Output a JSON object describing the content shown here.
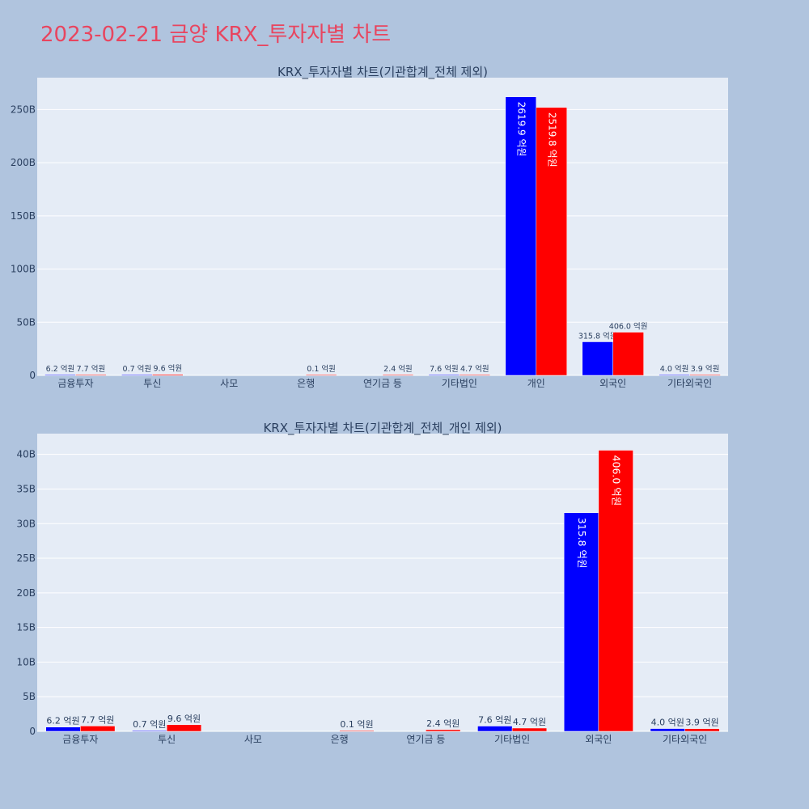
{
  "page": {
    "title": "2023-02-21 금양 KRX_투자자별 차트"
  },
  "colors": {
    "series_1": "#0000ff",
    "series_2": "#ff0000",
    "background": "#b0c4de",
    "plot_bg": "#e5ecf6",
    "text": "#2a3f5f",
    "title": "#e8455f"
  },
  "chart_data": [
    {
      "type": "bar",
      "title": "KRX_투자자별 차트(기관합계_전체 제외)",
      "categories": [
        "금융투자",
        "투신",
        "사모",
        "은행",
        "연기금 등",
        "기타법인",
        "개인",
        "외국인",
        "기타외국인"
      ],
      "series": [
        {
          "values": [
            0.62,
            0.07,
            0,
            0,
            0,
            0.76,
            261.99,
            31.58,
            0.4
          ],
          "labels": [
            "6.2 억원",
            "0.7 억원",
            "",
            "",
            "",
            "7.6 억원",
            "2619.9 억원",
            "315.8 억원",
            "4.0 억원"
          ]
        },
        {
          "values": [
            0.77,
            0.96,
            0,
            0.01,
            0.24,
            0.47,
            251.98,
            40.6,
            0.39
          ],
          "labels": [
            "7.7 억원",
            "9.6 억원",
            "",
            "0.1 억원",
            "2.4 억원",
            "4.7 억원",
            "2519.8 억원",
            "406.0 억원",
            "3.9 억원"
          ]
        }
      ],
      "y_unit": "B",
      "ylim": [
        0,
        280
      ],
      "yticks": [
        0,
        50,
        100,
        150,
        200,
        250
      ],
      "ytick_labels": [
        "0",
        "50B",
        "100B",
        "150B",
        "200B",
        "250B"
      ],
      "grid": true,
      "legend": "none"
    },
    {
      "type": "bar",
      "title": "KRX_투자자별 차트(기관합계_전체_개인 제외)",
      "categories": [
        "금융투자",
        "투신",
        "사모",
        "은행",
        "연기금 등",
        "기타법인",
        "외국인",
        "기타외국인"
      ],
      "series": [
        {
          "values": [
            0.62,
            0.07,
            0,
            0,
            0,
            0.76,
            31.58,
            0.4
          ],
          "labels": [
            "6.2 억원",
            "0.7 억원",
            "",
            "",
            "",
            "7.6 억원",
            "315.8 억원",
            "4.0 억원"
          ]
        },
        {
          "values": [
            0.77,
            0.96,
            0,
            0.01,
            0.24,
            0.47,
            40.6,
            0.39
          ],
          "labels": [
            "7.7 억원",
            "9.6 억원",
            "",
            "0.1 억원",
            "2.4 억원",
            "4.7 억원",
            "406.0 억원",
            "3.9 억원"
          ]
        }
      ],
      "y_unit": "B",
      "ylim": [
        0,
        43
      ],
      "yticks": [
        0,
        5,
        10,
        15,
        20,
        25,
        30,
        35,
        40
      ],
      "ytick_labels": [
        "0",
        "5B",
        "10B",
        "15B",
        "20B",
        "25B",
        "30B",
        "35B",
        "40B"
      ],
      "grid": true,
      "legend": "none"
    }
  ]
}
